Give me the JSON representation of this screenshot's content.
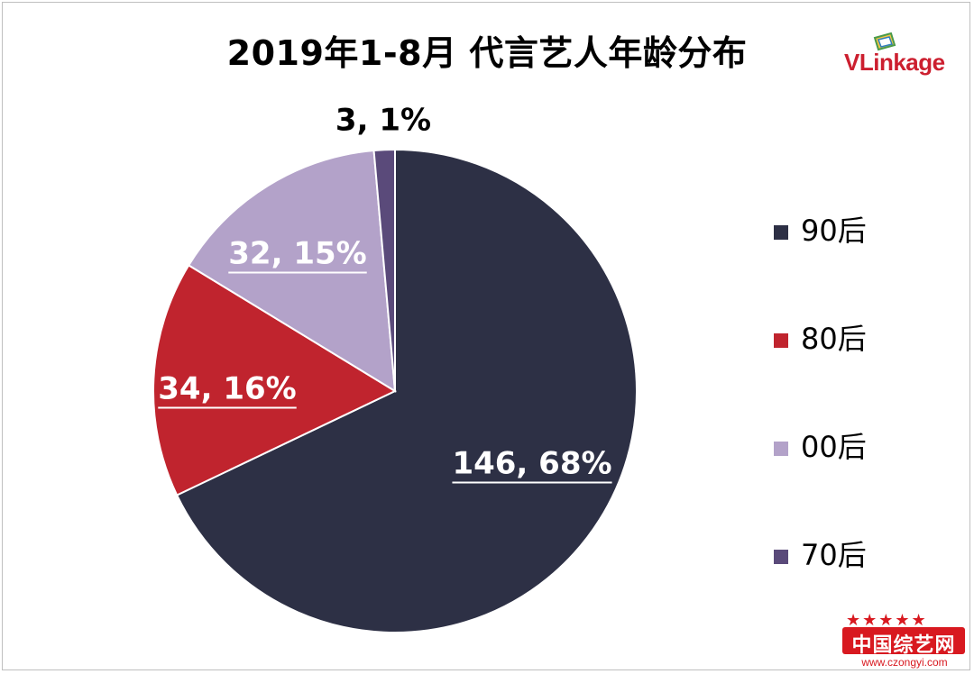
{
  "chart_data": {
    "type": "pie",
    "title": "2019年1-8月 代言艺人年龄分布",
    "categories": [
      "90后",
      "80后",
      "00后",
      "70后"
    ],
    "values": [
      146,
      34,
      32,
      3
    ],
    "percent_labels": [
      "68%",
      "16%",
      "15%",
      "1%"
    ],
    "data_labels": [
      "146, 68%",
      "34, 16%",
      "32, 15%",
      "3, 1%"
    ],
    "colors": [
      "#2d3045",
      "#c0242e",
      "#b3a2c9",
      "#5a4a7a"
    ],
    "legend_position": "right",
    "start_angle": "12 o'clock, clockwise"
  },
  "brand": {
    "logo_text": "VLinkage"
  },
  "watermark": {
    "text": "中国综艺网",
    "url": "www.czongyi.com",
    "stars": "★★★★★"
  }
}
